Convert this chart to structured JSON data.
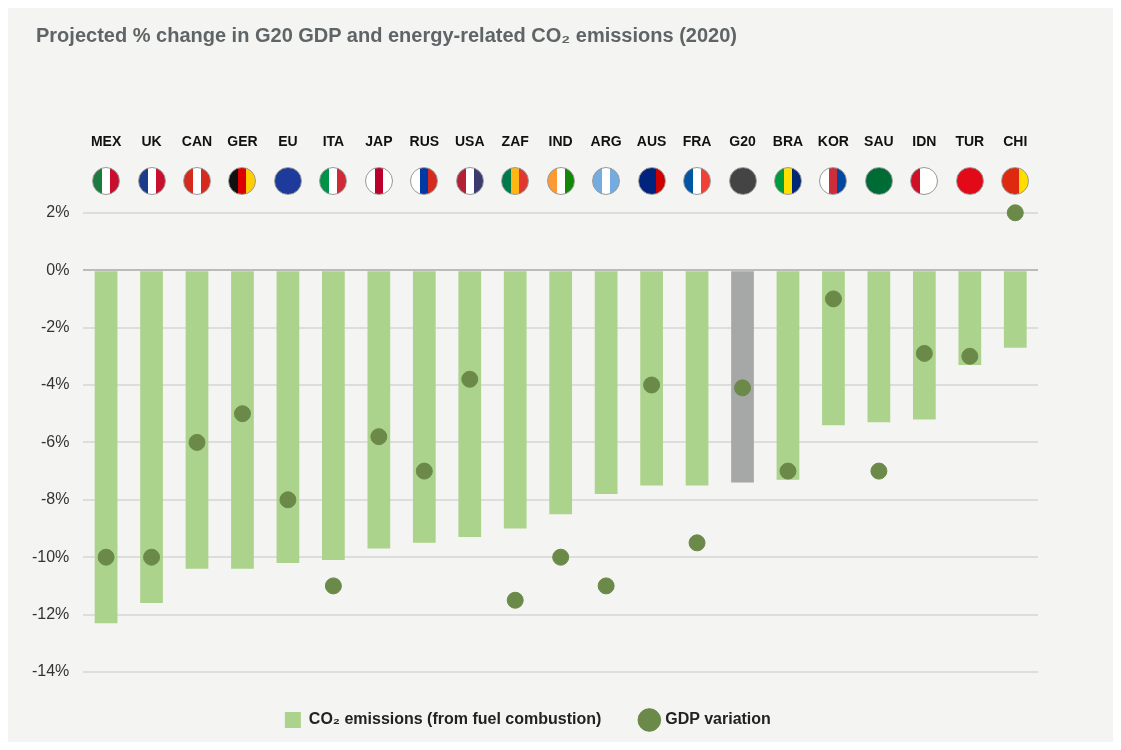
{
  "chart_data": {
    "type": "bar",
    "title": "Projected % change in G20 GDP and energy-related CO₂ emissions (2020)",
    "categories": [
      "MEX",
      "UK",
      "CAN",
      "GER",
      "EU",
      "ITA",
      "JAP",
      "RUS",
      "USA",
      "ZAF",
      "IND",
      "ARG",
      "AUS",
      "FRA",
      "G20",
      "BRA",
      "KOR",
      "SAU",
      "IDN",
      "TUR",
      "CHI"
    ],
    "series": [
      {
        "name": "CO₂ emissions (from fuel combustion)",
        "color": "#acd38b",
        "colors": [
          "#acd38b",
          "#acd38b",
          "#acd38b",
          "#acd38b",
          "#acd38b",
          "#acd38b",
          "#acd38b",
          "#acd38b",
          "#acd38b",
          "#acd38b",
          "#acd38b",
          "#acd38b",
          "#acd38b",
          "#acd38b",
          "#a5a8a6",
          "#acd38b",
          "#acd38b",
          "#acd38b",
          "#acd38b",
          "#acd38b",
          "#acd38b"
        ],
        "values": [
          -12.3,
          -11.6,
          -10.4,
          -10.4,
          -10.2,
          -10.1,
          -9.7,
          -9.5,
          -9.3,
          -9.0,
          -8.5,
          -7.8,
          -7.5,
          -7.5,
          -7.4,
          -7.3,
          -5.4,
          -5.3,
          -5.2,
          -3.3,
          -2.7
        ]
      },
      {
        "name": "GDP variation",
        "type": "scatter",
        "color": "#6b8a4a",
        "x": [
          "MEX",
          "UK",
          "CAN",
          "GER",
          "EU",
          "ITA",
          "JAP",
          "RUS",
          "USA",
          "ZAF",
          "IND",
          "ARG",
          "AUS",
          "FRA",
          "G20",
          "BRA",
          "KOR",
          "SAU",
          "IDN",
          "TUR",
          "CHI"
        ],
        "values": [
          -10,
          -10,
          -6,
          -5,
          -8,
          -11,
          -5.8,
          -7,
          -3.8,
          -11.5,
          -10,
          -11,
          -4,
          -9.5,
          -4.1,
          -7,
          -1,
          -7,
          -2.9,
          -3,
          2
        ]
      }
    ],
    "ylim": [
      -14,
      2
    ],
    "yticks": [
      {
        "value": -14,
        "label": "-14%"
      },
      {
        "value": -12,
        "label": "-12%"
      },
      {
        "value": -10,
        "label": "-10%"
      },
      {
        "value": -8,
        "label": "-8%"
      },
      {
        "value": -6,
        "label": "-6%"
      },
      {
        "value": -4,
        "label": "-4%"
      },
      {
        "value": -2,
        "label": "-2%"
      },
      {
        "value": 0,
        "label": "0%"
      },
      {
        "value": 2,
        "label": "2%"
      }
    ],
    "grid": "y",
    "legend": "bottom",
    "marker": "circle"
  }
}
